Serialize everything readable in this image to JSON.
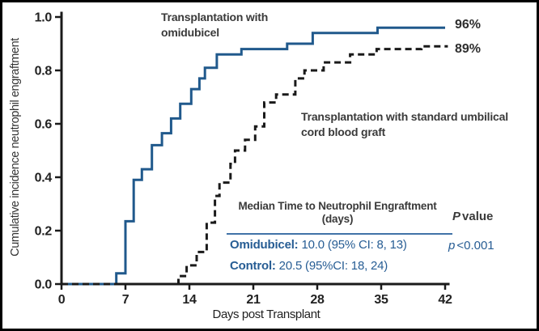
{
  "frame": {
    "background": "#ffffff",
    "border_color": "#000000"
  },
  "colors": {
    "omidubicel_blue": "#20598c",
    "control_black": "#1a1a1a",
    "axis_black": "#1a1a1a",
    "text_dark": "#3a3a3a",
    "table_blue": "#275d94",
    "rule_blue": "#4173a8"
  },
  "chart_data": {
    "type": "line",
    "subtype": "step-cumulative-incidence",
    "title": "",
    "xlabel": "Days post Transplant",
    "ylabel": "Cumulative incidence neutrophil engraftment",
    "xlim": [
      0,
      42
    ],
    "ylim": [
      0.0,
      1.0
    ],
    "x_ticks": [
      0,
      7,
      14,
      21,
      28,
      35,
      42
    ],
    "y_ticks": [
      0.0,
      0.2,
      0.4,
      0.6,
      0.8,
      1.0
    ],
    "y_tick_labels": [
      "0.0",
      "0.2",
      "0.4",
      "0.6",
      "0.8",
      "1.0"
    ],
    "grid": false,
    "legend_position": "annotations-on-plot",
    "series": [
      {
        "name": "Transplantation with omidubicel",
        "line_style": "solid",
        "color": "#20598c",
        "end_label": "96%",
        "final_value": 0.96,
        "points_day_value": [
          [
            0,
            0
          ],
          [
            6,
            0.04
          ],
          [
            7,
            0.235
          ],
          [
            7.9,
            0.39
          ],
          [
            8.8,
            0.43
          ],
          [
            9.9,
            0.52
          ],
          [
            11,
            0.565
          ],
          [
            12,
            0.62
          ],
          [
            13,
            0.675
          ],
          [
            14.2,
            0.73
          ],
          [
            15.1,
            0.77
          ],
          [
            15.7,
            0.81
          ],
          [
            17,
            0.86
          ],
          [
            19.7,
            0.88
          ],
          [
            24.7,
            0.9
          ],
          [
            27.5,
            0.94
          ],
          [
            34.6,
            0.96
          ],
          [
            42,
            0.96
          ]
        ]
      },
      {
        "name": "Transplantation with standard umbilical cord blood graft",
        "line_style": "dashed",
        "color": "#1a1a1a",
        "end_label": "89%",
        "final_value": 0.89,
        "points_day_value": [
          [
            0,
            0
          ],
          [
            12.8,
            0.03
          ],
          [
            13.7,
            0.07
          ],
          [
            14.8,
            0.12
          ],
          [
            15.9,
            0.23
          ],
          [
            16.8,
            0.33
          ],
          [
            17.3,
            0.38
          ],
          [
            18.5,
            0.45
          ],
          [
            19,
            0.5
          ],
          [
            20.1,
            0.54
          ],
          [
            21.2,
            0.59
          ],
          [
            22.2,
            0.68
          ],
          [
            23.5,
            0.71
          ],
          [
            25.6,
            0.77
          ],
          [
            26.6,
            0.8
          ],
          [
            28.7,
            0.83
          ],
          [
            31.6,
            0.86
          ],
          [
            34.5,
            0.88
          ],
          [
            39.4,
            0.89
          ],
          [
            42.3,
            0.89
          ]
        ]
      }
    ]
  },
  "annotations": {
    "omidubicel_label_line1": "Transplantation with",
    "omidubicel_label_line2": "omidubicel",
    "control_label_line1": "Transplantation with standard umbilical",
    "control_label_line2": "cord blood graft",
    "omidubicel_final": "96%",
    "control_final": "89%"
  },
  "table": {
    "header": "Median Time to Neutrophil Engraftment",
    "header_sub": "(days)",
    "p_header_italic": "P",
    "p_header_rest": "value",
    "rows": [
      {
        "label": "Omidubicel:",
        "value": " 10.0 (95% CI: 8, 13)",
        "p_italic": "p",
        "p_rest": "<0.001"
      },
      {
        "label": "Control:",
        "value": " 20.5 (95%CI: 18, 24)",
        "p_italic": "",
        "p_rest": ""
      }
    ]
  }
}
